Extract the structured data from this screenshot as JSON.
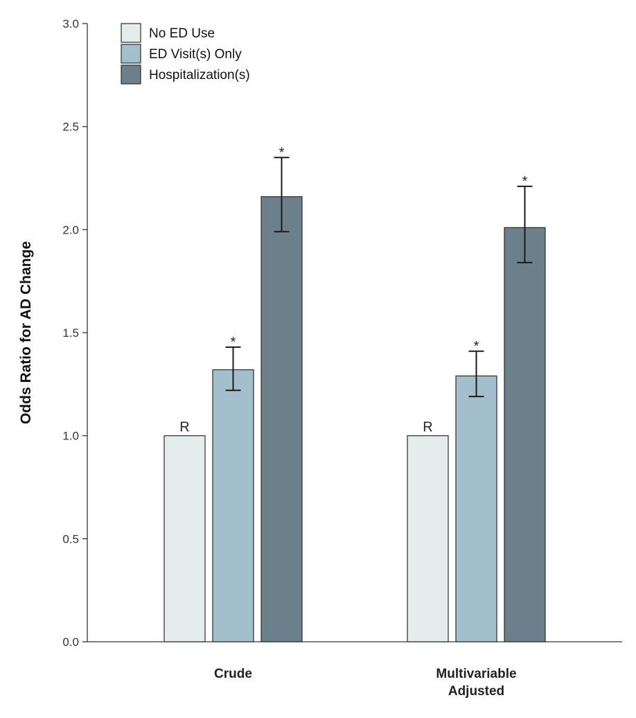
{
  "chart_data": {
    "type": "bar",
    "title": "",
    "ylabel": "Odds Ratio for AD Change",
    "xlabel": "",
    "ylim": [
      0,
      3
    ],
    "yticks": [
      "0.0",
      "0.5",
      "1.0",
      "1.5",
      "2.0",
      "2.5",
      "3.0"
    ],
    "ytick_values": [
      0,
      0.5,
      1,
      1.5,
      2,
      2.5,
      3
    ],
    "categories": [
      "Crude",
      "Multivariable Adjusted"
    ],
    "category_lines": [
      [
        "Crude"
      ],
      [
        "Multivariable",
        "Adjusted"
      ]
    ],
    "legend_position": "top-left",
    "series": [
      {
        "name": "No ED Use",
        "color": "#e4ecec",
        "values": [
          1.0,
          1.0
        ],
        "ci_low": [
          null,
          null
        ],
        "ci_high": [
          null,
          null
        ],
        "labels": [
          "R",
          "R"
        ]
      },
      {
        "name": "ED Visit(s) Only",
        "color": "#a3bfcc",
        "values": [
          1.32,
          1.29
        ],
        "ci_low": [
          1.22,
          1.19
        ],
        "ci_high": [
          1.43,
          1.41
        ],
        "labels": [
          "*",
          "*"
        ]
      },
      {
        "name": "Hospitalization(s)",
        "color": "#6b808a",
        "values": [
          2.16,
          2.01
        ],
        "ci_low": [
          1.99,
          1.84
        ],
        "ci_high": [
          2.35,
          2.21
        ],
        "labels": [
          "*",
          "*"
        ]
      }
    ]
  }
}
